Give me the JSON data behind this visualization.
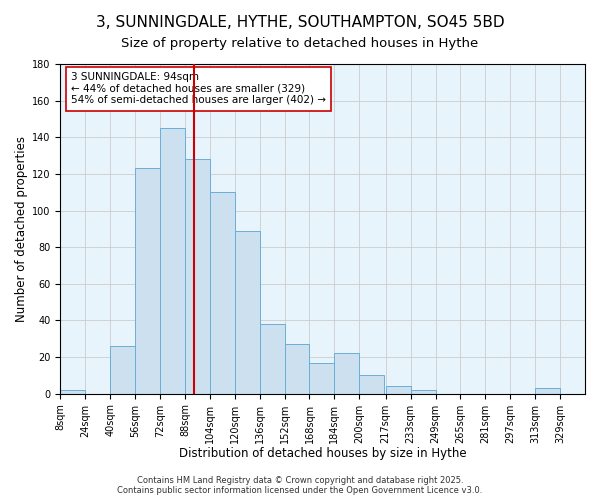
{
  "title": "3, SUNNINGDALE, HYTHE, SOUTHAMPTON, SO45 5BD",
  "subtitle": "Size of property relative to detached houses in Hythe",
  "xlabel": "Distribution of detached houses by size in Hythe",
  "ylabel": "Number of detached properties",
  "bar_color": "#cce0f0",
  "bar_edge_color": "#6aaed6",
  "background_color": "#ffffff",
  "plot_bg_color": "#e8f4fb",
  "grid_color": "#cccccc",
  "bins": [
    8,
    24,
    40,
    56,
    72,
    88,
    104,
    120,
    136,
    152,
    168,
    184,
    200,
    217,
    233,
    249,
    265,
    281,
    297,
    313,
    329,
    345
  ],
  "bin_labels": [
    "8sqm",
    "24sqm",
    "40sqm",
    "56sqm",
    "72sqm",
    "88sqm",
    "104sqm",
    "120sqm",
    "136sqm",
    "152sqm",
    "168sqm",
    "184sqm",
    "200sqm",
    "217sqm",
    "233sqm",
    "249sqm",
    "265sqm",
    "281sqm",
    "297sqm",
    "313sqm",
    "329sqm"
  ],
  "counts": [
    2,
    0,
    26,
    123,
    145,
    128,
    110,
    89,
    38,
    27,
    17,
    22,
    10,
    4,
    2,
    0,
    0,
    0,
    0,
    3,
    0
  ],
  "vline_x": 94,
  "vline_color": "#cc0000",
  "annotation_title": "3 SUNNINGDALE: 94sqm",
  "annotation_line1": "← 44% of detached houses are smaller (329)",
  "annotation_line2": "54% of semi-detached houses are larger (402) →",
  "annotation_box_color": "#ffffff",
  "annotation_box_edge_color": "#cc0000",
  "ylim": [
    0,
    180
  ],
  "yticks": [
    0,
    20,
    40,
    60,
    80,
    100,
    120,
    140,
    160,
    180
  ],
  "footer1": "Contains HM Land Registry data © Crown copyright and database right 2025.",
  "footer2": "Contains public sector information licensed under the Open Government Licence v3.0.",
  "title_fontsize": 11,
  "subtitle_fontsize": 9.5,
  "label_fontsize": 8.5,
  "tick_fontsize": 7,
  "annotation_fontsize": 7.5,
  "footer_fontsize": 6
}
